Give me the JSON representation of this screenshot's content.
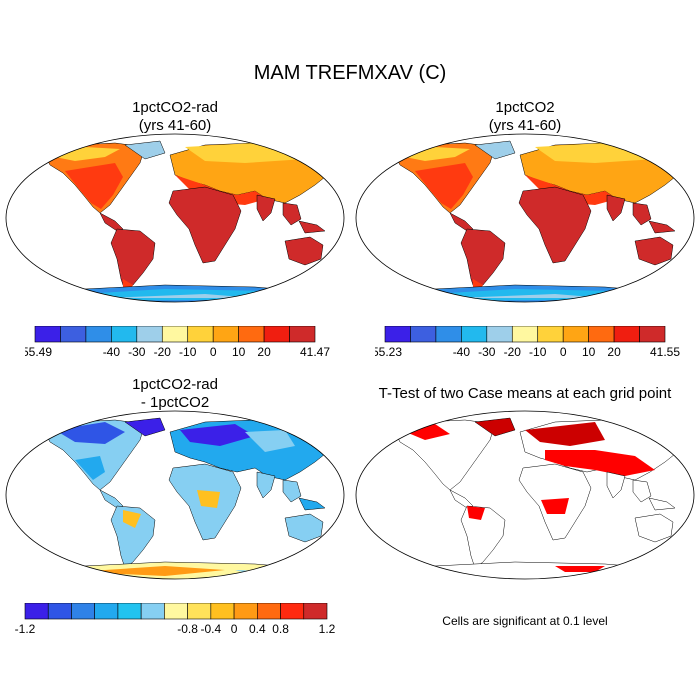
{
  "title": "MAM TREFMXAV (C)",
  "panels": {
    "top_left": {
      "title_line1": "1pctCO2-rad",
      "title_line2": "(yrs 41-60)"
    },
    "top_right": {
      "title_line1": "1pctCO2",
      "title_line2": "(yrs 41-60)"
    },
    "bottom_left": {
      "title_line1": "1pctCO2-rad",
      "title_line2": "- 1pctCO2"
    },
    "bottom_right": {
      "title": "T-Test of two Case means at each grid point",
      "note": "Cells are significant at 0.1 level"
    }
  },
  "colorbars": {
    "top_left": {
      "colors": [
        "#3b20e8",
        "#3d5fe0",
        "#2f8ee8",
        "#22b9ee",
        "#9ecfea",
        "#fff8a0",
        "#ffd23a",
        "#ffa514",
        "#ff6a10",
        "#f01e10",
        "#cf2a2a"
      ],
      "labels": [
        "-55.49",
        "-40",
        "-30",
        "-20",
        "-10",
        "0",
        "10",
        "20",
        "41.47"
      ]
    },
    "top_right": {
      "colors": [
        "#3b20e8",
        "#3d5fe0",
        "#2f8ee8",
        "#22b9ee",
        "#9ecfea",
        "#fff8a0",
        "#ffd23a",
        "#ffa514",
        "#ff6a10",
        "#f01e10",
        "#cf2a2a"
      ],
      "labels": [
        "-55.23",
        "-40",
        "-30",
        "-20",
        "-10",
        "0",
        "10",
        "20",
        "41.55"
      ]
    },
    "bottom_left": {
      "colors": [
        "#3b20e8",
        "#2f55e6",
        "#2f82e8",
        "#22a9ee",
        "#22c3f0",
        "#86cff2",
        "#fff8a0",
        "#ffe25a",
        "#ffc020",
        "#ff9a14",
        "#ff6a10",
        "#ff2a10",
        "#cf2a2a"
      ],
      "labels": [
        "-1.2",
        "-0.8",
        "-0.4",
        "0",
        "0.4",
        "0.8",
        "1.2"
      ]
    }
  }
}
